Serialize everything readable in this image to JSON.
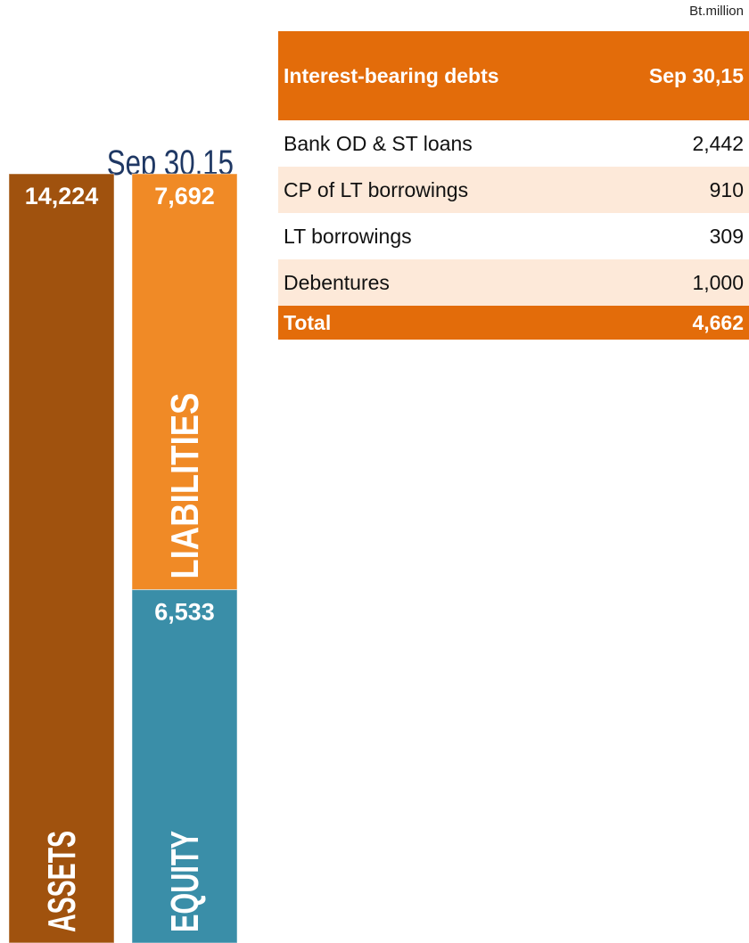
{
  "chart_data": {
    "type": "stacked_bar",
    "title": "Sep 30,15",
    "stacks": [
      [
        {
          "name": "ASSETS",
          "color": "#a0520e",
          "value": 14224,
          "value_label": "14,224"
        }
      ],
      [
        {
          "name": "LIABILITIES",
          "color": "#f08a26",
          "value": 7692,
          "value_label": "7,692"
        },
        {
          "name": "EQUITY",
          "color": "#3a8ea8",
          "value": 6533,
          "value_label": "6,533"
        }
      ]
    ]
  },
  "table": {
    "unit": "Bt.million",
    "header": [
      "Interest-bearing debts",
      "Sep 30,15"
    ],
    "rows": [
      [
        "Bank OD & ST loans",
        "2,442"
      ],
      [
        "CP of LT borrowings",
        "910"
      ],
      [
        "LT borrowings",
        "309"
      ],
      [
        "Debentures",
        "1,000"
      ]
    ],
    "total": [
      "Total",
      "4,662"
    ]
  }
}
